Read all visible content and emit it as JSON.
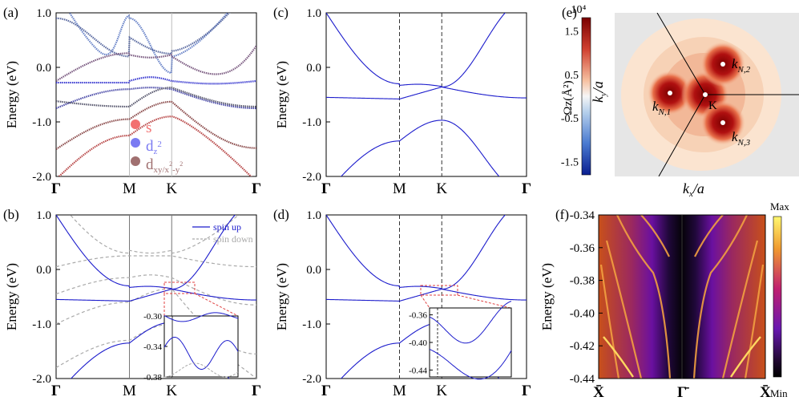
{
  "chart_data": [
    {
      "id": "a",
      "type": "line",
      "panel_label": "(a)",
      "ylabel": "Energy (eV)",
      "ylim": [
        -2.0,
        1.0
      ],
      "yticks": [
        "1.0",
        "0.0",
        "-1.0",
        "-2.0"
      ],
      "xticks": [
        "Γ",
        "M",
        "K",
        "Γ"
      ],
      "legend": {
        "placement": "center-left",
        "entries": [
          "s",
          "dz2",
          "dxy/x2-y2"
        ],
        "colors": [
          "#f27070",
          "#7a7af2",
          "#a07070"
        ]
      }
    },
    {
      "id": "b",
      "type": "line",
      "panel_label": "(b)",
      "ylabel": "Energy (eV)",
      "ylim": [
        -2.0,
        1.0
      ],
      "yticks": [
        "1.0",
        "0.0",
        "-1.0",
        "-2.0"
      ],
      "xticks": [
        "Γ",
        "M",
        "K",
        "Γ"
      ],
      "legend": {
        "placement": "top-right",
        "entries": [
          "spin up",
          "spin down"
        ],
        "colors": [
          "#1c1ccc",
          "#aaaaaa"
        ]
      },
      "inset": {
        "yticks": [
          "-0.30",
          "-0.34",
          "-0.38"
        ],
        "ylim": [
          -0.38,
          -0.3
        ]
      }
    },
    {
      "id": "c",
      "type": "line",
      "panel_label": "(c)",
      "ylabel": "Energy (eV)",
      "ylim": [
        -2.0,
        1.0
      ],
      "yticks": [
        "1.0",
        "0.0",
        "-1.0",
        "-2.0"
      ],
      "xticks": [
        "Γ",
        "M",
        "K",
        "Γ"
      ]
    },
    {
      "id": "d",
      "type": "line",
      "panel_label": "(d)",
      "ylabel": "Energy (eV)",
      "ylim": [
        -2.0,
        1.0
      ],
      "yticks": [
        "1.0",
        "0.0",
        "-1.0",
        "-2.0"
      ],
      "xticks": [
        "Γ",
        "M",
        "K",
        "Γ"
      ],
      "inset": {
        "yticks": [
          "-0.36",
          "-0.40",
          "-0.44"
        ],
        "ylim": [
          -0.45,
          -0.35
        ]
      }
    },
    {
      "id": "e",
      "type": "heatmap",
      "panel_label": "(e)",
      "xlabel": "kx/a",
      "ylabel": "ky/a",
      "colorbar": {
        "label": "Ωz(Å²)",
        "scale": "10⁴",
        "ticks": [
          "1.5",
          "0.5",
          "-0.5",
          "-1.5"
        ],
        "range": [
          -1.8,
          1.8
        ]
      },
      "annotations": [
        "kN,1",
        "kN,2",
        "kN,3",
        "K"
      ]
    },
    {
      "id": "f",
      "type": "heatmap",
      "panel_label": "(f)",
      "ylabel": "Energy (eV)",
      "ylim": [
        -0.44,
        -0.34
      ],
      "yticks": [
        "-0.34",
        "-0.36",
        "-0.38",
        "-0.40",
        "-0.42",
        "-0.44"
      ],
      "xticks": [
        "X̄",
        "Γ̄",
        "X̄"
      ],
      "colorbar": {
        "max_label": "Max",
        "min_label": "Min"
      }
    }
  ]
}
